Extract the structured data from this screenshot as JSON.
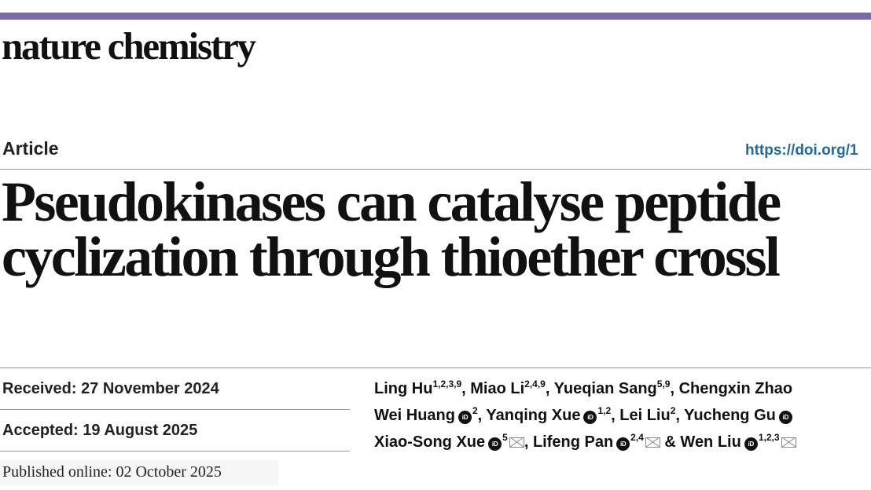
{
  "journal": {
    "name": "nature chemistry",
    "accent_color": "#7a6aa6"
  },
  "article": {
    "type": "Article",
    "doi": "https://doi.org/1",
    "title_line_1": "Pseudokinases can catalyse peptide",
    "title_line_2": "cyclization through thioether crossl"
  },
  "dates": {
    "received_label": "Received:",
    "received_value": "27 November 2024",
    "accepted_label": "Accepted:",
    "accepted_value": "19 August 2025",
    "published_label": "Published online:",
    "published_value": "02 October 2025"
  },
  "authors": {
    "line1": [
      {
        "name": "Ling Hu",
        "aff": "1,2,3,9",
        "sep": ", "
      },
      {
        "name": "Miao Li",
        "aff": "2,4,9",
        "sep": ", "
      },
      {
        "name": "Yueqian Sang",
        "aff": "5,9",
        "sep": ", "
      },
      {
        "name": "Chengxin Zhao",
        "aff": "",
        "sep": ""
      }
    ],
    "line2": [
      {
        "name": "Wei Huang",
        "aff": "2",
        "sep": ", "
      },
      {
        "name": "Yanqing Xue",
        "aff": "1,2",
        "sep": ", "
      },
      {
        "name": "Lei Liu",
        "aff": "2",
        "sep": ", "
      },
      {
        "name": "Yucheng Gu",
        "aff": "",
        "sep": ""
      }
    ],
    "line3": [
      {
        "name": "Xiao-Song Xue",
        "aff": "5",
        "sep": ", "
      },
      {
        "name": "Lifeng Pan",
        "aff": "2,4",
        "sep": " & "
      },
      {
        "name": "Wen Liu",
        "aff": "1,2,3",
        "sep": ""
      }
    ],
    "orcid_glyph": "iD",
    "icons": {
      "orcid": "orcid-icon",
      "email": "email-icon"
    }
  }
}
